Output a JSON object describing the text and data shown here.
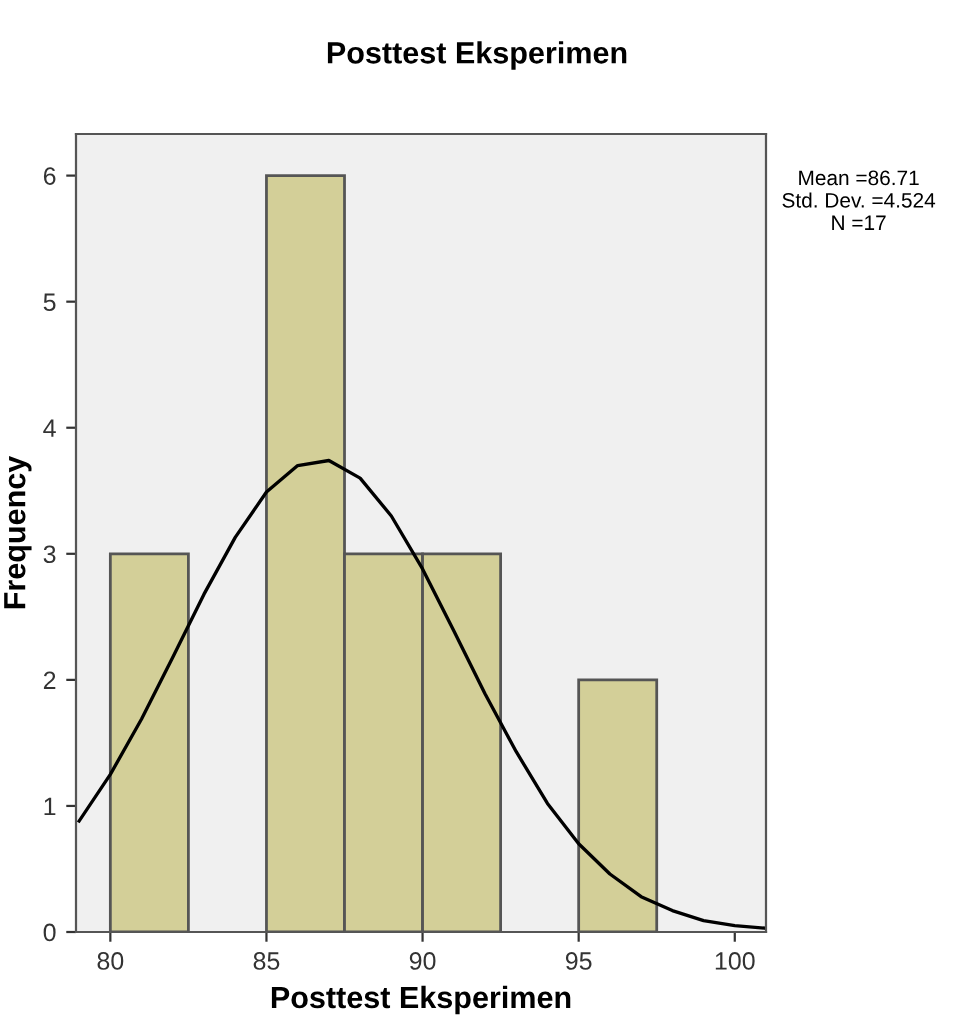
{
  "chart_data": {
    "type": "histogram",
    "title": "Posttest Eksperimen",
    "xlabel": "Posttest Eksperimen",
    "ylabel": "Frequency",
    "bins": [
      80,
      82.5,
      85,
      87.5,
      90,
      92.5,
      95,
      97.5
    ],
    "series": [
      {
        "color": "#d3cf98",
        "values": [
          3,
          0,
          6,
          3,
          3,
          0,
          2
        ]
      },
      {
        "type": "line",
        "color": "#000000",
        "x": [
          79,
          80,
          81,
          82,
          83,
          84,
          85,
          86,
          87,
          88,
          89,
          90,
          91,
          92,
          93,
          94,
          95,
          96,
          97,
          98,
          99,
          100,
          101
        ],
        "values": [
          0.88,
          1.25,
          1.69,
          2.18,
          2.68,
          3.13,
          3.49,
          3.7,
          3.74,
          3.6,
          3.3,
          2.88,
          2.39,
          1.89,
          1.43,
          1.02,
          0.7,
          0.46,
          0.28,
          0.17,
          0.09,
          0.05,
          0.03
        ]
      }
    ],
    "xlim": [
      78.9,
      101
    ],
    "xticks": [
      80,
      85,
      90,
      95,
      100
    ],
    "ylim": [
      0,
      6.33
    ],
    "yticks": [
      0,
      1,
      2,
      3,
      4,
      5,
      6
    ],
    "grid": false,
    "legend": false,
    "annotations": [
      "Mean =86.71\nStd. Dev. =4.524\nN =17"
    ]
  }
}
